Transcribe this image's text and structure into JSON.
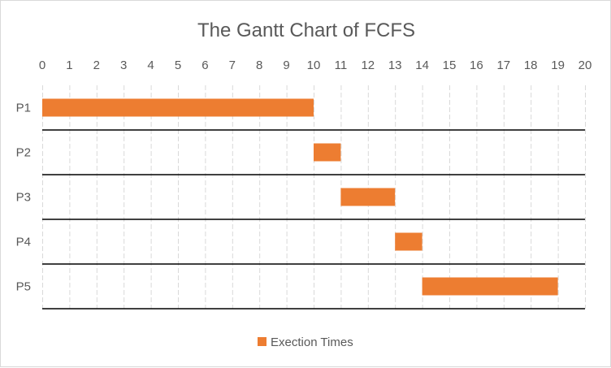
{
  "chart_data": {
    "type": "bar",
    "orientation": "horizontal",
    "stacked_offset": true,
    "title": "The Gantt Chart of FCFS",
    "categories": [
      "P1",
      "P2",
      "P3",
      "P4",
      "P5"
    ],
    "series": [
      {
        "name": "Exection Times",
        "start": [
          0,
          10,
          11,
          13,
          14
        ],
        "end": [
          10,
          11,
          13,
          14,
          19
        ],
        "color": "#ED7D31"
      }
    ],
    "xlim": [
      0,
      20
    ],
    "xticks": [
      "0",
      "1",
      "2",
      "3",
      "4",
      "5",
      "6",
      "7",
      "8",
      "9",
      "10",
      "11",
      "12",
      "13",
      "14",
      "15",
      "16",
      "17",
      "18",
      "19",
      "20"
    ],
    "x_axis_position": "top",
    "grid": true,
    "legend_position": "bottom"
  }
}
